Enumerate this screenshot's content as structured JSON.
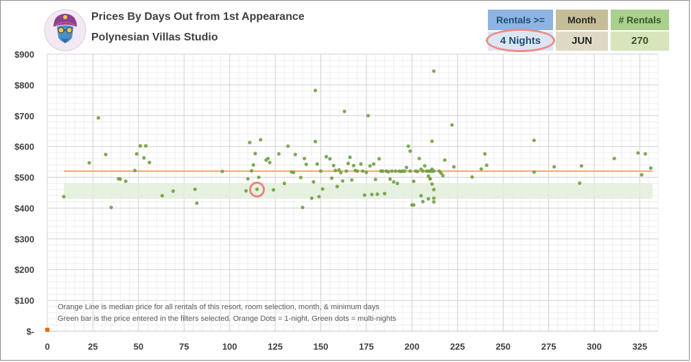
{
  "header": {
    "title": "Prices By Days Out from 1st Appearance",
    "subtitle": "Polynesian Villas Studio"
  },
  "filters": {
    "rentals_label": "Rentals >=",
    "rentals_value": "4 Nights",
    "month_label": "Month",
    "month_value": "JUN",
    "count_label": "# Rentals",
    "count_value": "270"
  },
  "colors": {
    "median_line": "#f4b183",
    "price_band": "#e2efda",
    "green_dot": "#70a040",
    "orange_dot": "#e46c0a",
    "highlight": "#f08080",
    "rentals_header": "#8db4e2",
    "month_header": "#c4bd97",
    "count_header": "#a9d08e"
  },
  "chart_data": {
    "type": "scatter",
    "xlim": [
      0,
      335
    ],
    "ylim": [
      0,
      900
    ],
    "x_ticks": [
      0,
      25,
      50,
      75,
      100,
      125,
      150,
      175,
      200,
      225,
      250,
      275,
      300,
      325
    ],
    "x_tick_labels": [
      "0",
      "25",
      "50",
      "75",
      "100",
      "125",
      "150",
      "175",
      "200",
      "225",
      "250",
      "275",
      "300",
      "325"
    ],
    "y_ticks": [
      0,
      100,
      200,
      300,
      400,
      500,
      600,
      700,
      800,
      900
    ],
    "y_tick_labels": [
      "$-",
      "$100",
      "$200",
      "$300",
      "$400",
      "$500",
      "$600",
      "$700",
      "$800",
      "$900"
    ],
    "grid": true,
    "median_price": 520,
    "price_band": [
      430,
      480
    ],
    "price_band_x": [
      9,
      332
    ],
    "highlight_point": [
      115,
      460
    ],
    "notes": [
      "Orange Line is median price for all rentals of this resort, room selection, month, & minimum days",
      "Green bar is the price entered in the filters selected. Orange Dots = 1-night, Green dots = multi-nights"
    ],
    "series": [
      {
        "type": "one-night",
        "points": [
          [
            0,
            0
          ]
        ]
      },
      {
        "type": "multi-night",
        "points": [
          [
            9,
            437
          ],
          [
            23,
            547
          ],
          [
            28,
            693
          ],
          [
            32,
            574
          ],
          [
            35,
            402
          ],
          [
            39,
            495
          ],
          [
            40,
            494
          ],
          [
            43,
            487
          ],
          [
            48,
            522
          ],
          [
            49,
            576
          ],
          [
            51,
            602
          ],
          [
            53,
            563
          ],
          [
            54,
            602
          ],
          [
            56,
            548
          ],
          [
            63,
            440
          ],
          [
            69,
            455
          ],
          [
            81,
            461
          ],
          [
            82,
            416
          ],
          [
            96,
            519
          ],
          [
            109,
            456
          ],
          [
            110,
            495
          ],
          [
            111,
            613
          ],
          [
            112,
            521
          ],
          [
            113,
            540
          ],
          [
            114,
            577
          ],
          [
            115,
            461
          ],
          [
            116,
            500
          ],
          [
            117,
            622
          ],
          [
            120,
            556
          ],
          [
            121,
            561
          ],
          [
            122,
            548
          ],
          [
            124,
            459
          ],
          [
            127,
            576
          ],
          [
            130,
            480
          ],
          [
            132,
            601
          ],
          [
            134,
            517
          ],
          [
            135,
            516
          ],
          [
            136,
            574
          ],
          [
            139,
            499
          ],
          [
            140,
            402
          ],
          [
            141,
            561
          ],
          [
            142,
            542
          ],
          [
            145,
            432
          ],
          [
            146,
            485
          ],
          [
            147,
            782
          ],
          [
            147,
            616
          ],
          [
            148,
            543
          ],
          [
            149,
            437
          ],
          [
            150,
            520
          ],
          [
            151,
            462
          ],
          [
            153,
            567
          ],
          [
            155,
            560
          ],
          [
            156,
            497
          ],
          [
            157,
            538
          ],
          [
            158,
            522
          ],
          [
            159,
            470
          ],
          [
            160,
            524
          ],
          [
            161,
            515
          ],
          [
            162,
            488
          ],
          [
            163,
            714
          ],
          [
            164,
            520
          ],
          [
            165,
            545
          ],
          [
            166,
            565
          ],
          [
            167,
            491
          ],
          [
            168,
            538
          ],
          [
            169,
            522
          ],
          [
            170,
            520
          ],
          [
            172,
            543
          ],
          [
            173,
            520
          ],
          [
            174,
            442
          ],
          [
            175,
            516
          ],
          [
            176,
            700
          ],
          [
            177,
            537
          ],
          [
            178,
            444
          ],
          [
            179,
            543
          ],
          [
            180,
            493
          ],
          [
            181,
            445
          ],
          [
            182,
            560
          ],
          [
            183,
            520
          ],
          [
            184,
            520
          ],
          [
            185,
            447
          ],
          [
            186,
            520
          ],
          [
            187,
            518
          ],
          [
            188,
            494
          ],
          [
            189,
            520
          ],
          [
            190,
            485
          ],
          [
            191,
            520
          ],
          [
            192,
            480
          ],
          [
            193,
            520
          ],
          [
            194,
            519
          ],
          [
            195,
            520
          ],
          [
            196,
            520
          ],
          [
            197,
            532
          ],
          [
            198,
            601
          ],
          [
            199,
            585
          ],
          [
            199,
            520
          ],
          [
            200,
            410
          ],
          [
            201,
            410
          ],
          [
            201,
            487
          ],
          [
            202,
            520
          ],
          [
            203,
            519
          ],
          [
            204,
            561
          ],
          [
            205,
            440
          ],
          [
            205,
            526
          ],
          [
            206,
            421
          ],
          [
            206,
            520
          ],
          [
            207,
            537
          ],
          [
            208,
            520
          ],
          [
            209,
            504
          ],
          [
            209,
            430
          ],
          [
            209,
            520
          ],
          [
            210,
            520
          ],
          [
            210,
            495
          ],
          [
            210,
            495
          ],
          [
            211,
            526
          ],
          [
            211,
            617
          ],
          [
            211,
            520
          ],
          [
            211,
            478
          ],
          [
            212,
            845
          ],
          [
            212,
            520
          ],
          [
            212,
            460
          ],
          [
            212,
            420
          ],
          [
            212,
            432
          ],
          [
            215,
            520
          ],
          [
            216,
            513
          ],
          [
            217,
            505
          ],
          [
            218,
            556
          ],
          [
            222,
            670
          ],
          [
            223,
            534
          ],
          [
            233,
            501
          ],
          [
            238,
            527
          ],
          [
            240,
            576
          ],
          [
            241,
            539
          ],
          [
            267,
            620
          ],
          [
            267,
            517
          ],
          [
            278,
            534
          ],
          [
            292,
            481
          ],
          [
            293,
            537
          ],
          [
            311,
            561
          ],
          [
            324,
            579
          ],
          [
            326,
            508
          ],
          [
            328,
            576
          ],
          [
            331,
            530
          ]
        ]
      }
    ]
  }
}
